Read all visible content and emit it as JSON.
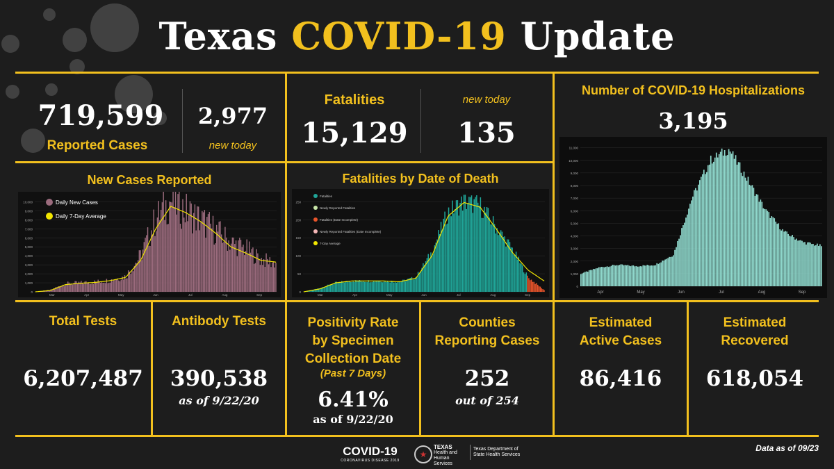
{
  "title": {
    "part1": "Texas",
    "accent": "COVID-19",
    "part2": "Update"
  },
  "accent_color": "#f2c01e",
  "cases": {
    "total": "719,599",
    "label": "Reported Cases",
    "new": "2,977",
    "new_label": "new today"
  },
  "fatalities": {
    "label": "Fatalities",
    "total": "15,129",
    "new_label": "new today",
    "new": "135"
  },
  "hospitalizations": {
    "label": "Number of COVID-19 Hospitalizations",
    "value": "3,195"
  },
  "stats": {
    "total_tests": {
      "label": "Total Tests",
      "value": "6,207,487"
    },
    "antibody_tests": {
      "label": "Antibody Tests",
      "value": "390,538",
      "note": "as of 9/22/20"
    },
    "positivity": {
      "label_lines": [
        "Positivity Rate",
        "by Specimen",
        "Collection Date"
      ],
      "sub": "(Past 7 Days)",
      "value": "6.41%",
      "note": "as of 9/22/20"
    },
    "counties": {
      "label_lines": [
        "Counties",
        "Reporting Cases"
      ],
      "value": "252",
      "note": "out of 254"
    },
    "active": {
      "label_lines": [
        "Estimated",
        "Active Cases"
      ],
      "value": "86,416"
    },
    "recovered": {
      "label_lines": [
        "Estimated",
        "Recovered"
      ],
      "value": "618,054"
    }
  },
  "footer": {
    "logo_main": "COVID-19",
    "logo_sub": "CORONAVIRUS DISEASE 2019",
    "agency1": "TEXAS",
    "agency2": "Health and Human Services",
    "agency3": "Texas Department of State Health Services",
    "date_note": "Data as of 09/23"
  },
  "chart_data": [
    {
      "type": "bar",
      "title": "New Cases Reported",
      "color": "#9b6b7d",
      "line_color": "#f2e600",
      "legend": [
        "Daily New Cases",
        "Daily 7-Day Average"
      ],
      "x_ticks": [
        "Mar",
        "Apr",
        "May",
        "Jun",
        "Jul",
        "Aug",
        "Sep"
      ],
      "y_ticks": [
        "0",
        "1,000",
        "2,000",
        "3,000",
        "4,000",
        "5,000",
        "6,000",
        "7,000",
        "8,000",
        "9,000",
        "10,000"
      ],
      "ylim": [
        0,
        10500
      ],
      "x": [
        "Mar 1",
        "Mar 15",
        "Apr 1",
        "Apr 15",
        "May 1",
        "May 15",
        "Jun 1",
        "Jun 15",
        "Jul 1",
        "Jul 8",
        "Jul 15",
        "Jul 22",
        "Aug 1",
        "Aug 15",
        "Sep 1",
        "Sep 15",
        "Sep 22"
      ],
      "values": [
        0,
        200,
        900,
        1000,
        1100,
        1300,
        1700,
        4000,
        8000,
        10200,
        9000,
        8000,
        6800,
        5500,
        4800,
        3600,
        3200
      ],
      "avg": [
        0,
        150,
        800,
        950,
        1050,
        1250,
        1600,
        3500,
        7000,
        9500,
        8800,
        7800,
        6500,
        5000,
        4300,
        3500,
        3300
      ]
    },
    {
      "type": "bar",
      "title": "Fatalities by Date of Death",
      "color": "#20a598",
      "line_color": "#f2e600",
      "legend": [
        "Fatalities",
        "Newly Reported Fatalities",
        "Fatalities (Date Incomplete)",
        "Newly Reported Fatalities (Date Incomplete)",
        "7-Day Average"
      ],
      "legend_colors": [
        "#20a598",
        "#c8e6a8",
        "#e8542a",
        "#f4b6b6",
        "#f2e600"
      ],
      "x_ticks": [
        "Mar",
        "Apr",
        "May",
        "Jun",
        "Jul",
        "Aug",
        "Sep"
      ],
      "y_ticks": [
        "0",
        "50",
        "100",
        "150",
        "200",
        "250"
      ],
      "ylim": [
        0,
        270
      ],
      "x": [
        "Mar 1",
        "Mar 15",
        "Apr 1",
        "Apr 15",
        "May 1",
        "May 15",
        "Jun 1",
        "Jun 15",
        "Jul 1",
        "Jul 15",
        "Jul 25",
        "Aug 1",
        "Aug 15",
        "Sep 1",
        "Sep 15",
        "Sep 22"
      ],
      "values": [
        0,
        10,
        25,
        30,
        30,
        30,
        28,
        40,
        110,
        220,
        250,
        240,
        180,
        120,
        40,
        5
      ],
      "avg": [
        0,
        8,
        25,
        30,
        30,
        30,
        28,
        38,
        100,
        210,
        248,
        235,
        175,
        110,
        60,
        30
      ]
    },
    {
      "type": "bar",
      "title": "Number of COVID-19 Hospitalizations",
      "color": "#8fd8cc",
      "x_ticks": [
        "Apr",
        "May",
        "Jun",
        "Jul",
        "Aug",
        "Sep"
      ],
      "y_ticks": [
        "0",
        "1,000",
        "2,000",
        "3,000",
        "4,000",
        "5,000",
        "6,000",
        "7,000",
        "8,000",
        "9,000",
        "10,000",
        "11,000"
      ],
      "ylim": [
        0,
        11200
      ],
      "x": [
        "Apr 5",
        "Apr 20",
        "May 1",
        "May 15",
        "Jun 1",
        "Jun 15",
        "Jul 1",
        "Jul 10",
        "Jul 22",
        "Aug 1",
        "Aug 15",
        "Sep 1",
        "Sep 15",
        "Sep 22"
      ],
      "values": [
        1000,
        1500,
        1700,
        1600,
        1700,
        2500,
        7000,
        10000,
        10900,
        8500,
        6000,
        4300,
        3500,
        3195
      ]
    }
  ]
}
